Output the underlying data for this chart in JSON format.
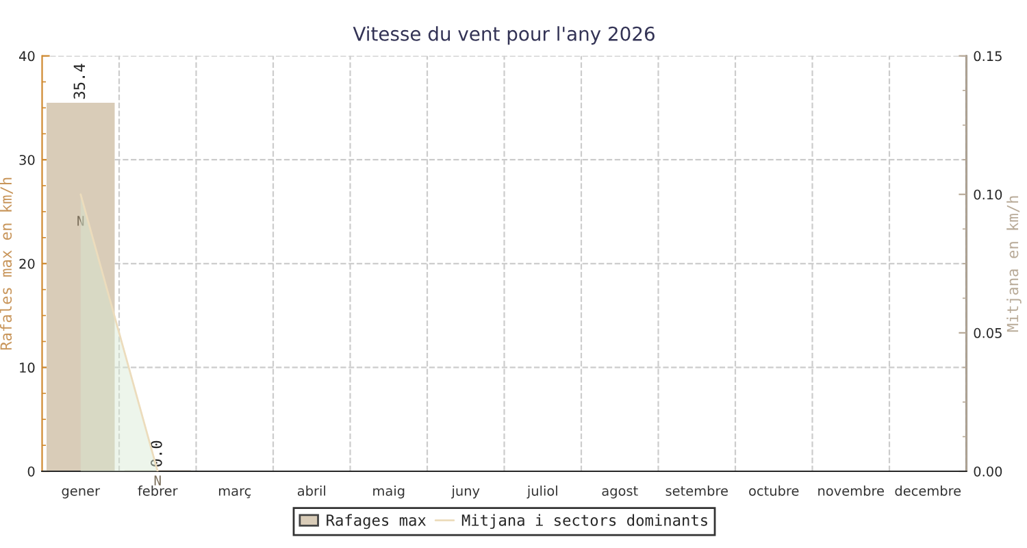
{
  "chart_data": {
    "type": "bar",
    "title": "Vitesse du vent pour l'any 2026",
    "categories": [
      "gener",
      "febrer",
      "març",
      "abril",
      "maig",
      "juny",
      "juliol",
      "agost",
      "setembre",
      "octubre",
      "novembre",
      "decembre"
    ],
    "series": [
      {
        "name": "Rafages max",
        "color": "#d9ccb8",
        "values": [
          35.4,
          0.0,
          null,
          null,
          null,
          null,
          null,
          null,
          null,
          null,
          null,
          null
        ],
        "value_labels": [
          "35.4",
          "0.0",
          null,
          null,
          null,
          null,
          null,
          null,
          null,
          null,
          null,
          null
        ]
      },
      {
        "name": "Mitjana i sectors dominants",
        "type": "area",
        "axis": "y2",
        "color": "#ecdcbc",
        "values": [
          0.1,
          0.0,
          null,
          null,
          null,
          null,
          null,
          null,
          null,
          null,
          null,
          null
        ]
      }
    ],
    "ylabel": "Rafales max en km/h",
    "y2label": "Mitjana en km/h",
    "ylim": [
      0,
      40
    ],
    "yticks": [
      0,
      10,
      20,
      30,
      40
    ],
    "y2lim": [
      0,
      0.15
    ],
    "y2ticks": [
      {
        "value": 0,
        "label": "0.00"
      },
      {
        "value": 0.05,
        "label": "0.05"
      },
      {
        "value": 0.1,
        "label": "0.10"
      },
      {
        "value": 0.15,
        "label": "0.15"
      }
    ],
    "annotations": [
      {
        "text": "N",
        "x": "gener",
        "y": 25
      },
      {
        "text": "N",
        "x": "febrer",
        "y": 0
      }
    ],
    "grid": true,
    "legend": "bottom"
  }
}
